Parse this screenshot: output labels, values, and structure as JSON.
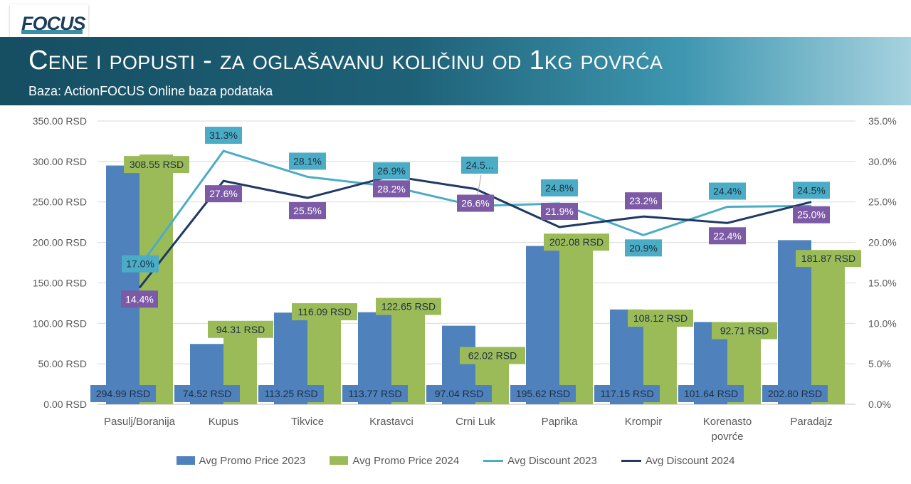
{
  "header": {
    "logo_text": "FOCUS",
    "title": "Cene i popusti  - za oglašavanu količinu od 1kg povrća",
    "subtitle": "Baza: ActionFOCUS Online baza podataka"
  },
  "colors": {
    "promo_2023": "#4f81bd",
    "promo_2024": "#9bbb59",
    "discount_2023": "#4bacc6",
    "discount_2024": "#1f3864",
    "label_discount_2024": "#7c5aa6",
    "label_discount_2023": "#4bacc6"
  },
  "chart_data": {
    "type": "bar",
    "categories": [
      "Pasulj/Boranija",
      "Kupus",
      "Tikvice",
      "Krastavci",
      "Crni Luk",
      "Paprika",
      "Krompir",
      "Korenasto povrće",
      "Paradajz"
    ],
    "series": [
      {
        "name": "Avg Promo Price 2023",
        "type": "bar",
        "axis": "left",
        "values": [
          294.99,
          74.52,
          113.25,
          113.77,
          97.04,
          195.62,
          117.15,
          101.64,
          202.8
        ],
        "labels": [
          "294.99 RSD",
          "74.52 RSD",
          "113.25 RSD",
          "113.77 RSD",
          "97.04 RSD",
          "195.62 RSD",
          "117.15 RSD",
          "101.64 RSD",
          "202.80 RSD"
        ]
      },
      {
        "name": "Avg Promo Price 2024",
        "type": "bar",
        "axis": "left",
        "values": [
          308.55,
          94.31,
          116.09,
          122.65,
          62.02,
          202.08,
          108.12,
          92.71,
          181.87
        ],
        "labels": [
          "308.55 RSD",
          "94.31 RSD",
          "116.09 RSD",
          "122.65 RSD",
          "62.02 RSD",
          "202.08 RSD",
          "108.12 RSD",
          "92.71 RSD",
          "181.87 RSD"
        ]
      },
      {
        "name": "Avg Discount 2023",
        "type": "line",
        "axis": "right",
        "values": [
          17.0,
          31.3,
          28.1,
          26.9,
          24.5,
          24.8,
          20.9,
          24.4,
          24.5
        ],
        "labels": [
          "17.0%",
          "31.3%",
          "28.1%",
          "26.9%",
          "24.5...",
          "24.8%",
          "20.9%",
          "24.4%",
          "24.5%"
        ]
      },
      {
        "name": "Avg Discount 2024",
        "type": "line",
        "axis": "right",
        "values": [
          14.4,
          27.6,
          25.5,
          28.2,
          26.6,
          21.9,
          23.2,
          22.4,
          25.0
        ],
        "labels": [
          "14.4%",
          "27.6%",
          "25.5%",
          "28.2%",
          "26.6%",
          "21.9%",
          "23.2%",
          "22.4%",
          "25.0%"
        ]
      }
    ],
    "y_left": {
      "min": 0,
      "max": 350,
      "step": 50,
      "tick_labels": [
        "0.00 RSD",
        "50.00 RSD",
        "100.00 RSD",
        "150.00 RSD",
        "200.00 RSD",
        "250.00 RSD",
        "300.00 RSD",
        "350.00 RSD"
      ]
    },
    "y_right": {
      "min": 0,
      "max": 35,
      "step": 5,
      "tick_labels": [
        "0.0%",
        "5.0%",
        "10.0%",
        "15.0%",
        "20.0%",
        "25.0%",
        "30.0%",
        "35.0%"
      ]
    },
    "grid": true,
    "legend_position": "bottom"
  }
}
